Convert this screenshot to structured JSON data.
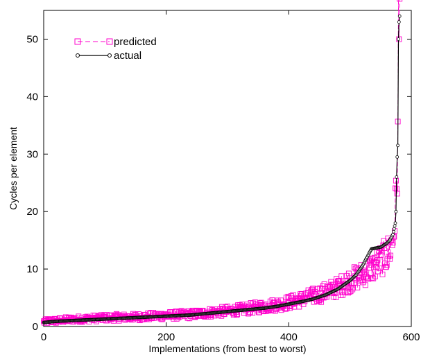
{
  "chart_data": {
    "type": "line",
    "title": "",
    "xlabel": "Implementations (from best to worst)",
    "ylabel": "Cycles per element",
    "xlim": [
      0,
      600
    ],
    "ylim": [
      0,
      55
    ],
    "xticks": [
      0,
      200,
      400,
      600
    ],
    "yticks": [
      0,
      10,
      20,
      30,
      40,
      50
    ],
    "grid": false,
    "legend_position": "top-left",
    "series": [
      {
        "name": "predicted",
        "style": "dashed line with square markers",
        "color": "#ff00cc",
        "approx_points": [
          [
            0,
            0.8
          ],
          [
            10,
            1.0
          ],
          [
            20,
            1.0
          ],
          [
            40,
            1.2
          ],
          [
            60,
            1.3
          ],
          [
            80,
            1.4
          ],
          [
            100,
            1.5
          ],
          [
            120,
            1.6
          ],
          [
            140,
            1.6
          ],
          [
            160,
            1.7
          ],
          [
            180,
            1.8
          ],
          [
            200,
            1.9
          ],
          [
            220,
            2.0
          ],
          [
            240,
            2.1
          ],
          [
            260,
            2.3
          ],
          [
            280,
            2.5
          ],
          [
            300,
            2.7
          ],
          [
            320,
            2.9
          ],
          [
            340,
            3.2
          ],
          [
            360,
            3.5
          ],
          [
            380,
            3.8
          ],
          [
            400,
            4.2
          ],
          [
            420,
            4.7
          ],
          [
            440,
            5.3
          ],
          [
            460,
            6.0
          ],
          [
            480,
            6.8
          ],
          [
            500,
            8.0
          ],
          [
            510,
            8.5
          ],
          [
            520,
            9.0
          ],
          [
            530,
            9.8
          ],
          [
            540,
            10.5
          ],
          [
            550,
            11.5
          ],
          [
            560,
            12.5
          ],
          [
            565,
            13.5
          ],
          [
            570,
            15.0
          ],
          [
            574,
            20.0
          ],
          [
            576,
            26.0
          ],
          [
            577,
            28.0
          ],
          [
            578,
            33.0
          ],
          [
            579,
            50.0
          ],
          [
            580,
            50.0
          ],
          [
            581,
            52.0
          ]
        ]
      },
      {
        "name": "actual",
        "style": "solid line with circle markers",
        "color": "#000000",
        "approx_points": [
          [
            0,
            0.7
          ],
          [
            20,
            0.9
          ],
          [
            40,
            1.0
          ],
          [
            60,
            1.1
          ],
          [
            80,
            1.2
          ],
          [
            100,
            1.3
          ],
          [
            120,
            1.4
          ],
          [
            140,
            1.5
          ],
          [
            160,
            1.6
          ],
          [
            180,
            1.7
          ],
          [
            200,
            1.8
          ],
          [
            220,
            1.9
          ],
          [
            240,
            2.0
          ],
          [
            260,
            2.2
          ],
          [
            280,
            2.4
          ],
          [
            300,
            2.6
          ],
          [
            320,
            2.8
          ],
          [
            340,
            3.0
          ],
          [
            360,
            3.2
          ],
          [
            380,
            3.5
          ],
          [
            400,
            3.9
          ],
          [
            420,
            4.3
          ],
          [
            440,
            4.8
          ],
          [
            460,
            5.5
          ],
          [
            480,
            6.5
          ],
          [
            500,
            8.0
          ],
          [
            510,
            9.0
          ],
          [
            520,
            10.5
          ],
          [
            530,
            12.5
          ],
          [
            535,
            13.5
          ],
          [
            550,
            13.8
          ],
          [
            560,
            14.5
          ],
          [
            565,
            15.0
          ],
          [
            570,
            16.0
          ],
          [
            574,
            18.0
          ],
          [
            575,
            20.0
          ],
          [
            576,
            26.0
          ],
          [
            577,
            29.5
          ],
          [
            578,
            31.5
          ],
          [
            579,
            50.0
          ],
          [
            580,
            53.0
          ],
          [
            581,
            54.0
          ]
        ]
      }
    ]
  }
}
